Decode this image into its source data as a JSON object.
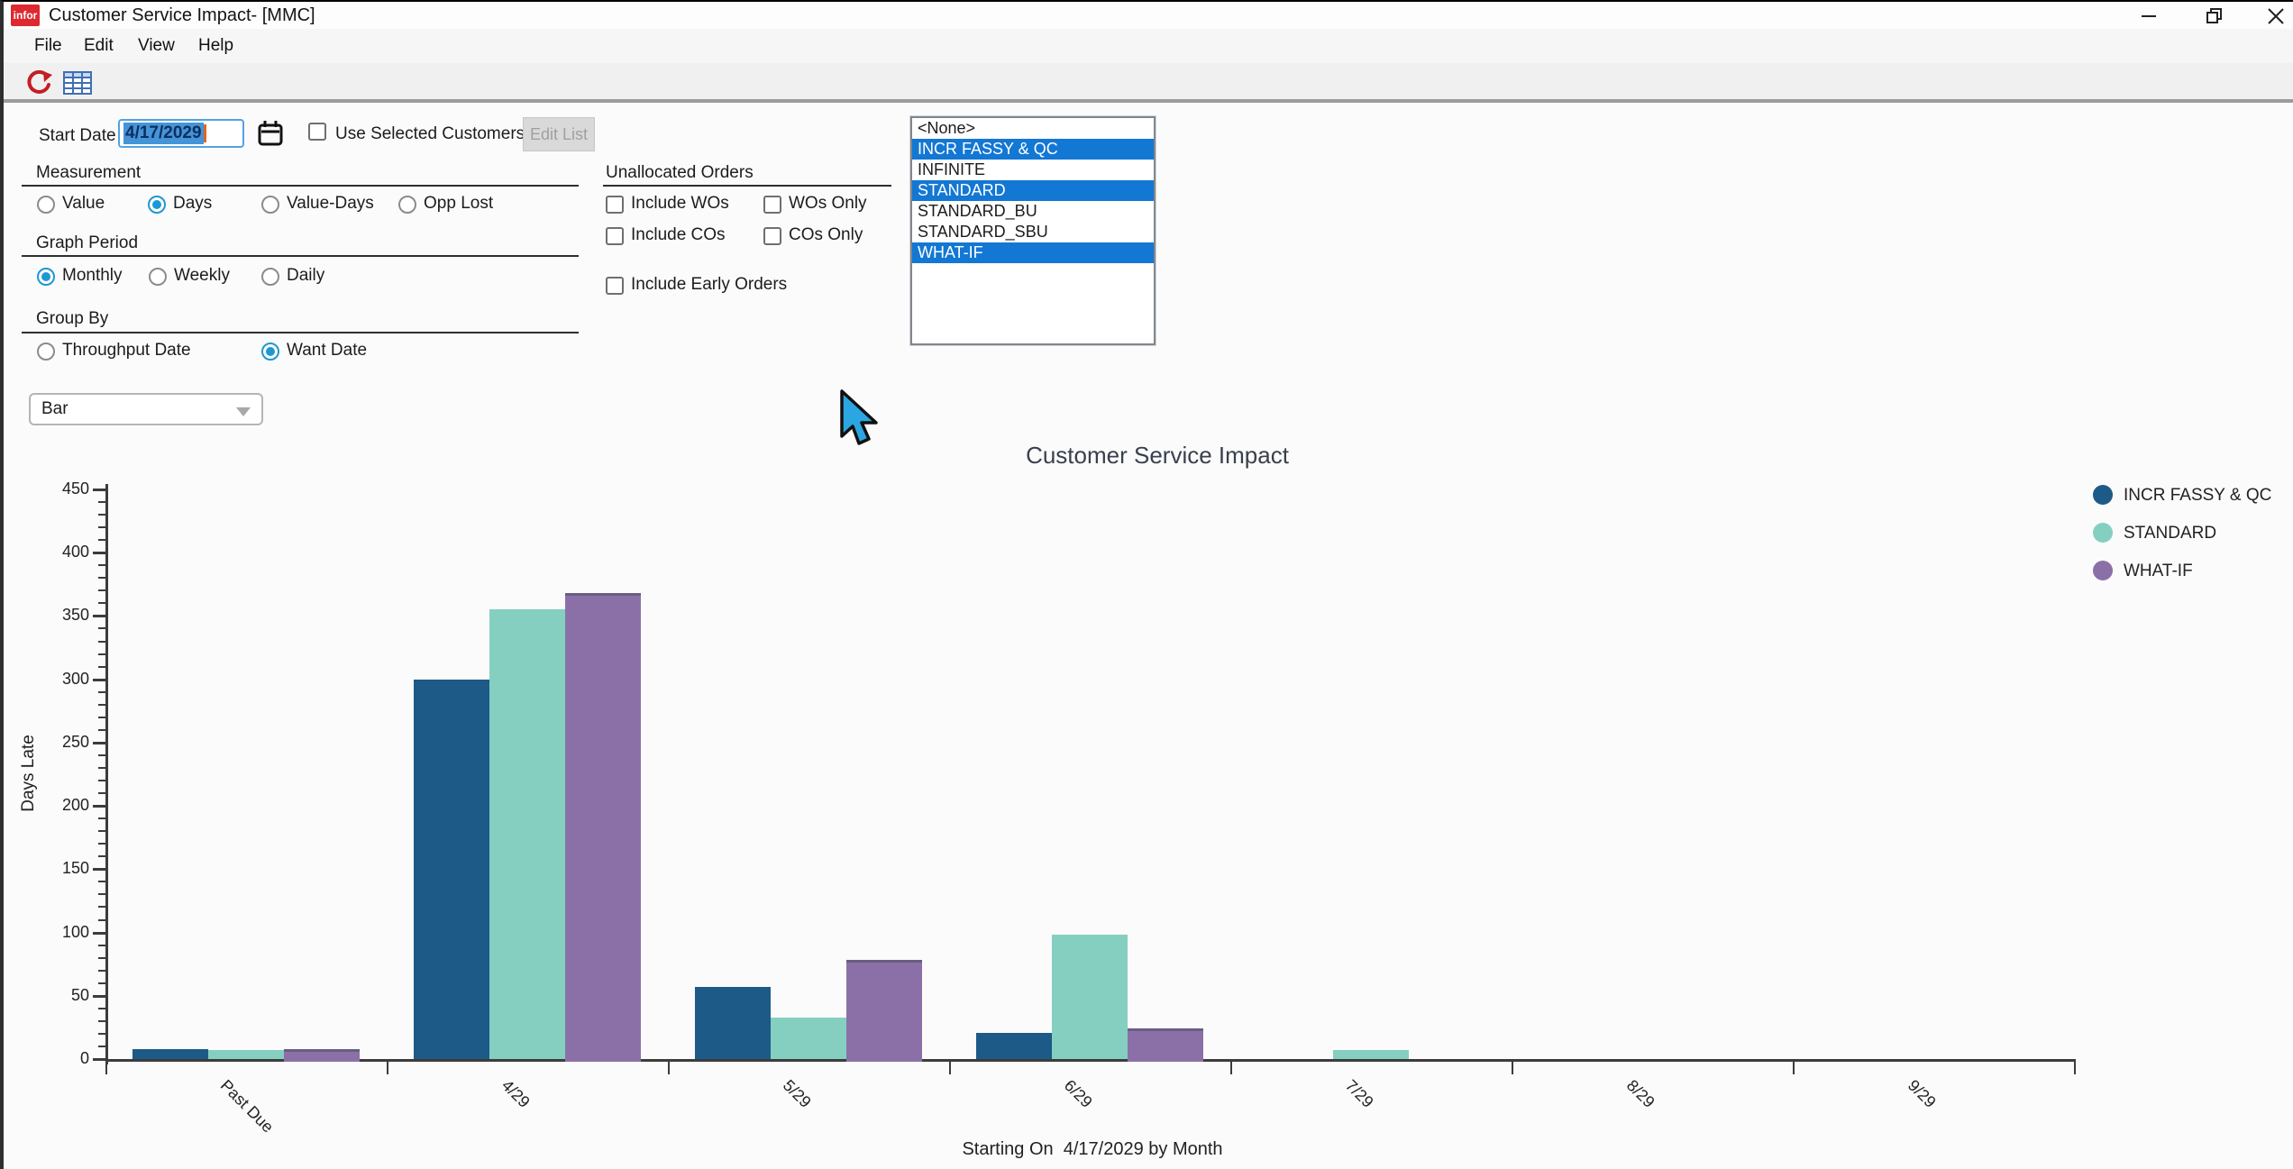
{
  "window": {
    "logo_text": "infor",
    "title": "Customer Service Impact- [MMC]"
  },
  "menu": {
    "items": [
      "File",
      "Edit",
      "View",
      "Help"
    ]
  },
  "toolbar": {
    "icons": [
      "refresh-icon",
      "grid-icon"
    ]
  },
  "form": {
    "start_date": {
      "label": "Start Date",
      "value": "4/17/2029"
    },
    "use_selected_customers": {
      "label": "Use Selected Customers",
      "checked": false
    },
    "edit_list_button": {
      "label": "Edit List",
      "enabled": false
    },
    "sections": [
      {
        "label": "Measurement",
        "options": [
          {
            "label": "Value",
            "selected": false
          },
          {
            "label": "Days",
            "selected": true
          },
          {
            "label": "Value-Days",
            "selected": false
          },
          {
            "label": "Opp Lost",
            "selected": false
          }
        ]
      },
      {
        "label": "Graph Period",
        "options": [
          {
            "label": "Monthly",
            "selected": true
          },
          {
            "label": "Weekly",
            "selected": false
          },
          {
            "label": "Daily",
            "selected": false
          }
        ]
      },
      {
        "label": "Group By",
        "options": [
          {
            "label": "Throughput Date",
            "selected": false
          },
          {
            "label": "Want Date",
            "selected": true
          }
        ]
      }
    ],
    "unallocated_orders": {
      "label": "Unallocated Orders",
      "checkboxes": [
        {
          "label": "Include WOs",
          "checked": false
        },
        {
          "label": "WOs Only",
          "checked": false
        },
        {
          "label": "Include COs",
          "checked": false
        },
        {
          "label": "COs Only",
          "checked": false
        },
        {
          "label": "Include Early Orders",
          "checked": false
        }
      ]
    },
    "chart_type_dropdown": {
      "value": "Bar"
    },
    "scenario_list": {
      "items": [
        {
          "label": "<None>",
          "selected": false
        },
        {
          "label": "INCR FASSY & QC",
          "selected": true
        },
        {
          "label": "INFINITE",
          "selected": false
        },
        {
          "label": "STANDARD",
          "selected": true
        },
        {
          "label": "STANDARD_BU",
          "selected": false
        },
        {
          "label": "STANDARD_SBU",
          "selected": false
        },
        {
          "label": "WHAT-IF",
          "selected": true
        }
      ]
    }
  },
  "chart_data": {
    "type": "bar",
    "title": "Customer Service Impact",
    "categories": [
      "Past Due",
      "4/29",
      "5/29",
      "6/29",
      "7/29",
      "8/29",
      "9/29"
    ],
    "series": [
      {
        "name": "INCR FASSY & QC",
        "color": "#1d5a87",
        "values": [
          8,
          300,
          57,
          21,
          0,
          0,
          0
        ]
      },
      {
        "name": "STANDARD",
        "color": "#85cfc1",
        "values": [
          7,
          355,
          33,
          98,
          7,
          0,
          0
        ]
      },
      {
        "name": "WHAT-IF",
        "color": "#8b70a8",
        "values": [
          8,
          368,
          78,
          24,
          0,
          0,
          0
        ]
      }
    ],
    "xlabel": "",
    "ylabel": "Days Late",
    "ylim": [
      0,
      450
    ],
    "ytick_step": 50,
    "yminor_step": 10,
    "grid": false,
    "legend_position": "right",
    "caption": "Starting On  4/17/2029 by Month"
  },
  "colors": {
    "selection_blue": "#1377d4",
    "radio_accent": "#1f97d4",
    "logo_red": "#dd2a30",
    "bar_incr_fassy_qc": "#1d5a87",
    "bar_standard": "#85cfc1",
    "bar_what_if": "#8b70a8"
  }
}
